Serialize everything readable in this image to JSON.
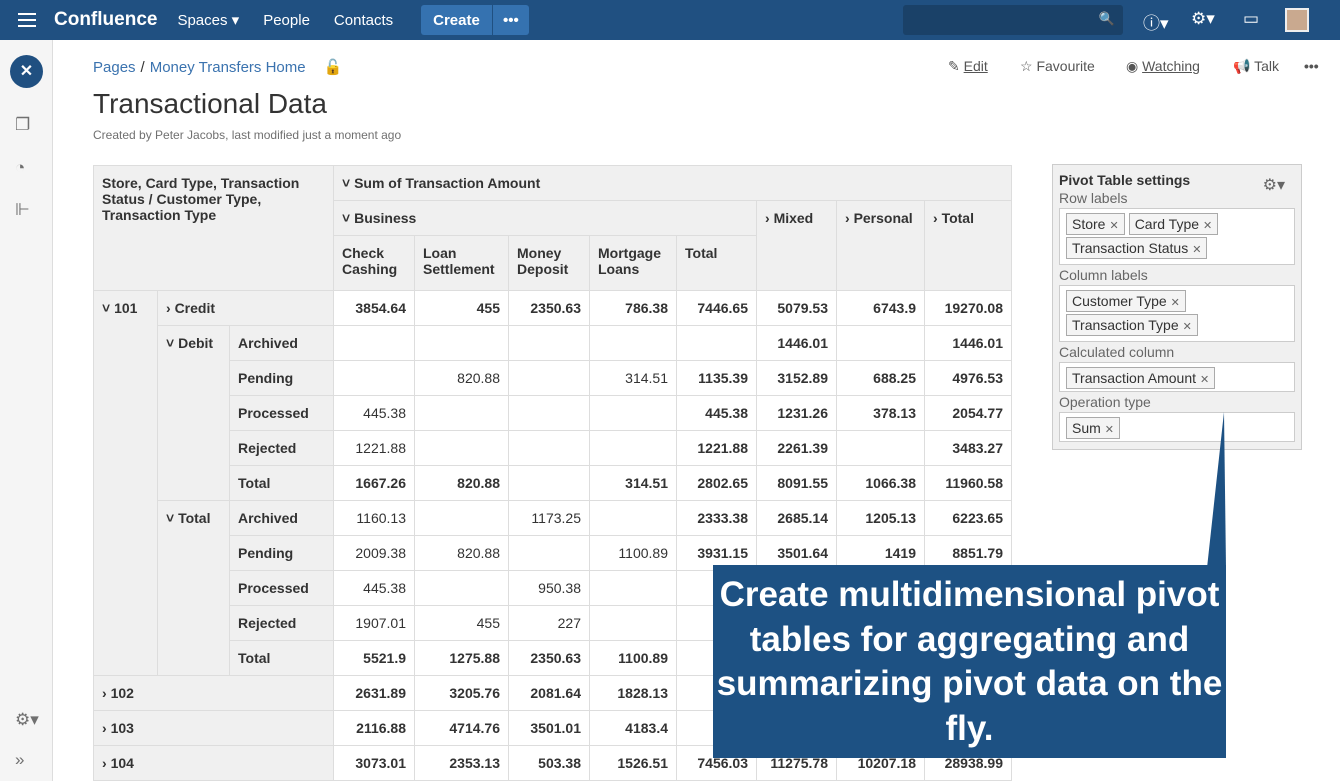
{
  "topbar": {
    "logo": "Confluence",
    "spaces": "Spaces",
    "people": "People",
    "contacts": "Contacts",
    "create": "Create",
    "more": "•••",
    "search_icon": "search-icon",
    "help": "?",
    "gear": "⚙"
  },
  "breadcrumb": {
    "pages": "Pages",
    "home": "Money Transfers Home"
  },
  "actions": {
    "edit": "Edit",
    "favourite": "Favourite",
    "watching": "Watching",
    "talk": "Talk",
    "more": "•••"
  },
  "page": {
    "title": "Transactional Data",
    "meta": "Created by Peter Jacobs, last modified just a moment ago"
  },
  "pivot": {
    "row_header": "Store, Card Type, Transaction Status / Customer Type, Transaction Type",
    "sum_header": "Sum of Transaction Amount",
    "business": "Business",
    "mixed": "Mixed",
    "personal": "Personal",
    "total": "Total",
    "business_cols": [
      "Check Cashing",
      "Loan Settlement",
      "Money Deposit",
      "Mortgage Loans",
      "Total"
    ],
    "rows": [
      {
        "l1": "101",
        "l2": "Credit",
        "values": [
          "3854.64",
          "455",
          "2350.63",
          "786.38",
          "7446.65",
          "5079.53",
          "6743.9",
          "19270.08"
        ],
        "bold": true
      },
      {
        "l2": "Debit",
        "l3": "Archived",
        "values": [
          "",
          "",
          "",
          "",
          "",
          "1446.01",
          "",
          "1446.01"
        ]
      },
      {
        "l3": "Pending",
        "values": [
          "",
          "820.88",
          "",
          "314.51",
          "1135.39",
          "3152.89",
          "688.25",
          "4976.53"
        ]
      },
      {
        "l3": "Processed",
        "values": [
          "445.38",
          "",
          "",
          "",
          "445.38",
          "1231.26",
          "378.13",
          "2054.77"
        ]
      },
      {
        "l3": "Rejected",
        "values": [
          "1221.88",
          "",
          "",
          "",
          "1221.88",
          "2261.39",
          "",
          "3483.27"
        ]
      },
      {
        "l3": "Total",
        "values": [
          "1667.26",
          "820.88",
          "",
          "314.51",
          "2802.65",
          "8091.55",
          "1066.38",
          "11960.58"
        ],
        "bold": true
      },
      {
        "l2": "Total",
        "l3": "Archived",
        "values": [
          "1160.13",
          "",
          "1173.25",
          "",
          "2333.38",
          "2685.14",
          "1205.13",
          "6223.65"
        ]
      },
      {
        "l3": "Pending",
        "values": [
          "2009.38",
          "820.88",
          "",
          "1100.89",
          "3931.15",
          "3501.64",
          "1419",
          "8851.79"
        ]
      },
      {
        "l3": "Processed",
        "values": [
          "445.38",
          "",
          "950.38",
          "",
          "",
          "",
          "",
          ""
        ]
      },
      {
        "l3": "Rejected",
        "values": [
          "1907.01",
          "455",
          "227",
          "",
          "",
          "",
          "",
          ""
        ]
      },
      {
        "l3": "Total",
        "values": [
          "5521.9",
          "1275.88",
          "2350.63",
          "1100.89",
          "",
          "",
          "",
          ""
        ],
        "bold": true
      },
      {
        "l1": "102",
        "values": [
          "2631.89",
          "3205.76",
          "2081.64",
          "1828.13",
          "",
          "",
          "",
          ""
        ],
        "bold": true
      },
      {
        "l1": "103",
        "values": [
          "2116.88",
          "4714.76",
          "3501.01",
          "4183.4",
          "",
          "",
          "",
          ""
        ],
        "bold": true
      },
      {
        "l1": "104",
        "values": [
          "3073.01",
          "2353.13",
          "503.38",
          "1526.51",
          "7456.03",
          "11275.78",
          "10207.18",
          "28938.99"
        ],
        "bold": true
      }
    ]
  },
  "settings": {
    "title": "Pivot Table settings",
    "row_labels": "Row labels",
    "row_tags": [
      "Store",
      "Card Type",
      "Transaction Status"
    ],
    "column_labels": "Column labels",
    "column_tags": [
      "Customer Type",
      "Transaction Type"
    ],
    "calculated": "Calculated column",
    "calc_tags": [
      "Transaction Amount"
    ],
    "operation": "Operation type",
    "op_tags": [
      "Sum"
    ]
  },
  "callout": {
    "text": "Create multidimensional pivot tables for aggregating and summarizing pivot data on the fly.",
    "color": "#1d5183"
  }
}
